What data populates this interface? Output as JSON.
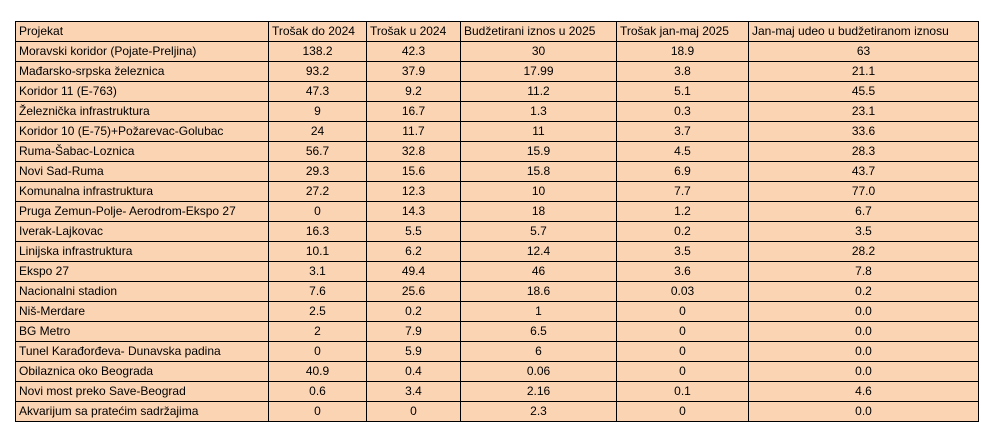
{
  "table": {
    "headers": [
      "Projekat",
      "Trošak do 2024",
      "Trošak u 2024",
      "Budžetirani iznos u 2025",
      "Trošak jan-maj 2025",
      "Jan-maj udeo u budžetiranom iznosu"
    ],
    "rows": [
      [
        "Moravski koridor (Pojate-Preljina)",
        "138.2",
        "42.3",
        "30",
        "18.9",
        "63"
      ],
      [
        "Mađarsko-srpska železnica",
        "93.2",
        "37.9",
        "17.99",
        "3.8",
        "21.1"
      ],
      [
        "Koridor 11 (E-763)",
        "47.3",
        "9.2",
        "11.2",
        "5.1",
        "45.5"
      ],
      [
        "Železnička infrastruktura",
        "9",
        "16.7",
        "1.3",
        "0.3",
        "23.1"
      ],
      [
        "Koridor 10 (E-75)+Požarevac-Golubac",
        "24",
        "11.7",
        "11",
        "3.7",
        "33.6"
      ],
      [
        "Ruma-Šabac-Loznica",
        "56.7",
        "32.8",
        "15.9",
        "4.5",
        "28.3"
      ],
      [
        "Novi Sad-Ruma",
        "29.3",
        "15.6",
        "15.8",
        "6.9",
        "43.7"
      ],
      [
        "Komunalna infrastruktura",
        "27.2",
        "12.3",
        "10",
        "7.7",
        "77.0"
      ],
      [
        "Pruga Zemun-Polje- Aerodrom-Ekspo 27",
        "0",
        "14.3",
        "18",
        "1.2",
        "6.7"
      ],
      [
        "Iverak-Lajkovac",
        "16.3",
        "5.5",
        "5.7",
        "0.2",
        "3.5"
      ],
      [
        "Linijska infrastruktura",
        "10.1",
        "6.2",
        "12.4",
        "3.5",
        "28.2"
      ],
      [
        "Ekspo 27",
        "3.1",
        "49.4",
        "46",
        "3.6",
        "7.8"
      ],
      [
        "Nacionalni stadion",
        "7.6",
        "25.6",
        "18.6",
        "0.03",
        "0.2"
      ],
      [
        "Niš-Merdare",
        "2.5",
        "0.2",
        "1",
        "0",
        "0.0"
      ],
      [
        "BG Metro",
        "2",
        "7.9",
        "6.5",
        "0",
        "0.0"
      ],
      [
        "Tunel Karađorđeva- Dunavska padina",
        "0",
        "5.9",
        "6",
        "0",
        "0.0"
      ],
      [
        "Obilaznica oko Beograda",
        "40.9",
        "0.4",
        "0.06",
        "0",
        "0.0"
      ],
      [
        "Novi most preko Save-Beograd",
        "0.6",
        "3.4",
        "2.16",
        "0.1",
        "4.6"
      ],
      [
        "Akvarijum sa pratećim sadržajima",
        "0",
        "0",
        "2.3",
        "0",
        "0.0"
      ]
    ]
  }
}
